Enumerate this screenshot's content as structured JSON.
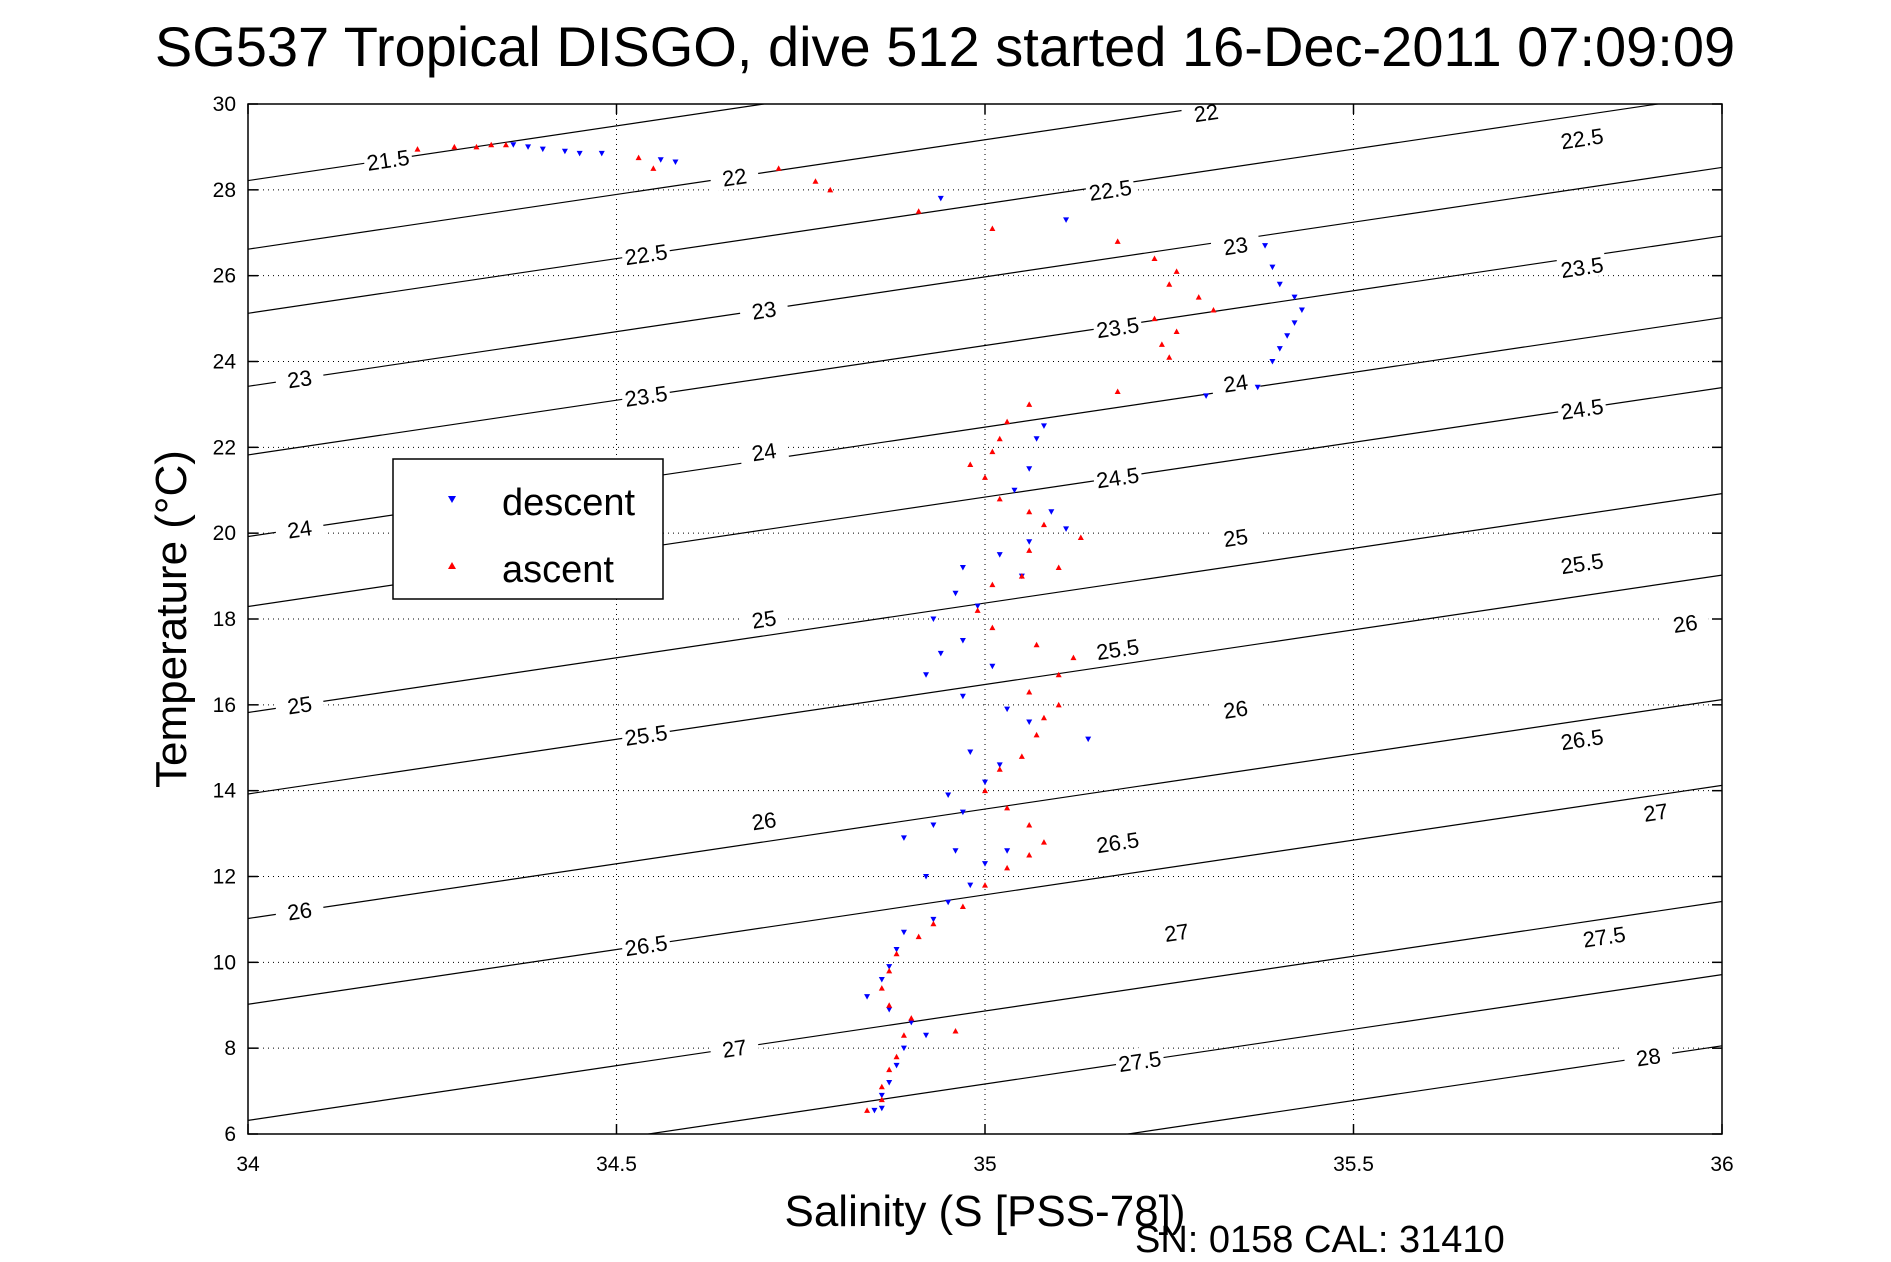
{
  "chart_data": {
    "type": "scatter",
    "title": "SG537 Tropical DISGO, dive 512 started 16-Dec-2011 07:09:09",
    "xlabel": "Salinity (S [PSS-78])",
    "ylabel": "Temperature (°C)",
    "xlim": [
      34,
      36
    ],
    "ylim": [
      6,
      30
    ],
    "x_ticks": [
      "34",
      "34.5",
      "35",
      "35.5",
      "36"
    ],
    "y_ticks": [
      "6",
      "8",
      "10",
      "12",
      "14",
      "16",
      "18",
      "20",
      "22",
      "24",
      "26",
      "28",
      "30"
    ],
    "grid": true,
    "legend_position": "upper-left",
    "footer": "SN: 0158  CAL: 31410",
    "colors": {
      "descent": "#0000ff",
      "ascent": "#ff0000",
      "contour": "#000000"
    },
    "density_contours": [
      {
        "label": "21.5",
        "x": 34.19,
        "y": 28.7
      },
      {
        "label": "22",
        "x": 34.66,
        "y": 28.3
      },
      {
        "label": "22",
        "x": 35.3,
        "y": 29.8
      },
      {
        "label": "22.5",
        "x": 34.54,
        "y": 26.5
      },
      {
        "label": "22.5",
        "x": 35.17,
        "y": 28.0
      },
      {
        "label": "22.5",
        "x": 35.81,
        "y": 29.2
      },
      {
        "label": "23",
        "x": 34.07,
        "y": 23.6
      },
      {
        "label": "23",
        "x": 34.7,
        "y": 25.2
      },
      {
        "label": "23",
        "x": 35.34,
        "y": 26.7
      },
      {
        "label": "23.5",
        "x": 34.54,
        "y": 23.2
      },
      {
        "label": "23.5",
        "x": 35.18,
        "y": 24.8
      },
      {
        "label": "23.5",
        "x": 35.81,
        "y": 26.2
      },
      {
        "label": "24",
        "x": 34.07,
        "y": 20.1
      },
      {
        "label": "24",
        "x": 34.7,
        "y": 21.9
      },
      {
        "label": "24",
        "x": 35.34,
        "y": 23.5
      },
      {
        "label": "24.5",
        "x": 35.18,
        "y": 21.3
      },
      {
        "label": "24.5",
        "x": 35.81,
        "y": 22.9
      },
      {
        "label": "25",
        "x": 34.07,
        "y": 16.0
      },
      {
        "label": "25",
        "x": 34.7,
        "y": 18.0
      },
      {
        "label": "25",
        "x": 35.34,
        "y": 19.9
      },
      {
        "label": "25.5",
        "x": 34.54,
        "y": 15.3
      },
      {
        "label": "25.5",
        "x": 35.18,
        "y": 17.3
      },
      {
        "label": "25.5",
        "x": 35.81,
        "y": 19.3
      },
      {
        "label": "26",
        "x": 34.07,
        "y": 11.2
      },
      {
        "label": "26",
        "x": 34.7,
        "y": 13.3
      },
      {
        "label": "26",
        "x": 35.34,
        "y": 15.9
      },
      {
        "label": "26",
        "x": 35.95,
        "y": 17.9
      },
      {
        "label": "26.5",
        "x": 34.54,
        "y": 10.4
      },
      {
        "label": "26.5",
        "x": 35.18,
        "y": 12.8
      },
      {
        "label": "26.5",
        "x": 35.81,
        "y": 15.2
      },
      {
        "label": "27",
        "x": 34.66,
        "y": 8.0
      },
      {
        "label": "27",
        "x": 35.26,
        "y": 10.7
      },
      {
        "label": "27",
        "x": 35.91,
        "y": 13.5
      },
      {
        "label": "27.5",
        "x": 35.21,
        "y": 7.7
      },
      {
        "label": "27.5",
        "x": 35.84,
        "y": 10.6
      },
      {
        "label": "28",
        "x": 35.9,
        "y": 7.8
      }
    ],
    "series": [
      {
        "name": "descent",
        "marker": "triangle-down",
        "color": "#0000ff",
        "points": [
          [
            34.36,
            29.05
          ],
          [
            34.38,
            29.0
          ],
          [
            34.4,
            28.95
          ],
          [
            34.43,
            28.9
          ],
          [
            34.45,
            28.85
          ],
          [
            34.48,
            28.85
          ],
          [
            34.56,
            28.7
          ],
          [
            34.58,
            28.65
          ],
          [
            34.94,
            27.8
          ],
          [
            35.11,
            27.3
          ],
          [
            35.38,
            26.7
          ],
          [
            35.39,
            26.2
          ],
          [
            35.4,
            25.8
          ],
          [
            35.42,
            25.5
          ],
          [
            35.43,
            25.2
          ],
          [
            35.42,
            24.9
          ],
          [
            35.41,
            24.6
          ],
          [
            35.4,
            24.3
          ],
          [
            35.39,
            24.0
          ],
          [
            35.37,
            23.4
          ],
          [
            35.3,
            23.2
          ],
          [
            35.08,
            22.5
          ],
          [
            35.07,
            22.2
          ],
          [
            35.06,
            21.5
          ],
          [
            35.04,
            21.0
          ],
          [
            35.09,
            20.5
          ],
          [
            35.11,
            20.1
          ],
          [
            35.06,
            19.8
          ],
          [
            35.02,
            19.5
          ],
          [
            34.97,
            19.2
          ],
          [
            35.05,
            19.0
          ],
          [
            34.96,
            18.6
          ],
          [
            34.99,
            18.3
          ],
          [
            34.93,
            18.0
          ],
          [
            34.97,
            17.5
          ],
          [
            34.94,
            17.2
          ],
          [
            35.01,
            16.9
          ],
          [
            34.92,
            16.7
          ],
          [
            34.97,
            16.2
          ],
          [
            35.03,
            15.9
          ],
          [
            35.06,
            15.6
          ],
          [
            35.14,
            15.2
          ],
          [
            34.98,
            14.9
          ],
          [
            35.02,
            14.6
          ],
          [
            35.0,
            14.2
          ],
          [
            34.95,
            13.9
          ],
          [
            34.97,
            13.5
          ],
          [
            34.93,
            13.2
          ],
          [
            34.89,
            12.9
          ],
          [
            34.96,
            12.6
          ],
          [
            35.03,
            12.6
          ],
          [
            35.0,
            12.3
          ],
          [
            34.92,
            12.0
          ],
          [
            34.98,
            11.8
          ],
          [
            34.95,
            11.4
          ],
          [
            34.93,
            11.0
          ],
          [
            34.89,
            10.7
          ],
          [
            34.88,
            10.3
          ],
          [
            34.87,
            9.9
          ],
          [
            34.86,
            9.6
          ],
          [
            34.84,
            9.2
          ],
          [
            34.87,
            8.9
          ],
          [
            34.9,
            8.6
          ],
          [
            34.92,
            8.3
          ],
          [
            34.89,
            8.0
          ],
          [
            34.88,
            7.6
          ],
          [
            34.87,
            7.2
          ],
          [
            34.86,
            6.9
          ],
          [
            34.86,
            6.6
          ],
          [
            34.85,
            6.55
          ]
        ]
      },
      {
        "name": "ascent",
        "marker": "triangle-up",
        "color": "#ff0000",
        "points": [
          [
            34.23,
            28.95
          ],
          [
            34.28,
            29.0
          ],
          [
            34.31,
            29.0
          ],
          [
            34.33,
            29.05
          ],
          [
            34.35,
            29.05
          ],
          [
            34.53,
            28.75
          ],
          [
            34.55,
            28.5
          ],
          [
            34.72,
            28.5
          ],
          [
            34.77,
            28.2
          ],
          [
            34.79,
            28.0
          ],
          [
            34.91,
            27.5
          ],
          [
            35.01,
            27.1
          ],
          [
            35.18,
            26.8
          ],
          [
            35.23,
            26.4
          ],
          [
            35.26,
            26.1
          ],
          [
            35.25,
            25.8
          ],
          [
            35.29,
            25.5
          ],
          [
            35.31,
            25.2
          ],
          [
            35.23,
            25.0
          ],
          [
            35.26,
            24.7
          ],
          [
            35.24,
            24.4
          ],
          [
            35.25,
            24.1
          ],
          [
            35.18,
            23.3
          ],
          [
            35.06,
            23.0
          ],
          [
            35.03,
            22.6
          ],
          [
            35.02,
            22.2
          ],
          [
            35.01,
            21.9
          ],
          [
            34.98,
            21.6
          ],
          [
            35.0,
            21.3
          ],
          [
            35.02,
            20.8
          ],
          [
            35.06,
            20.5
          ],
          [
            35.08,
            20.2
          ],
          [
            35.13,
            19.9
          ],
          [
            35.06,
            19.6
          ],
          [
            35.1,
            19.2
          ],
          [
            35.05,
            19.0
          ],
          [
            35.01,
            18.8
          ],
          [
            34.99,
            18.2
          ],
          [
            35.01,
            17.8
          ],
          [
            35.07,
            17.4
          ],
          [
            35.12,
            17.1
          ],
          [
            35.1,
            16.7
          ],
          [
            35.06,
            16.3
          ],
          [
            35.1,
            16.0
          ],
          [
            35.08,
            15.7
          ],
          [
            35.07,
            15.3
          ],
          [
            35.05,
            14.8
          ],
          [
            35.02,
            14.5
          ],
          [
            35.0,
            14.0
          ],
          [
            35.03,
            13.6
          ],
          [
            35.06,
            13.2
          ],
          [
            35.08,
            12.8
          ],
          [
            35.06,
            12.5
          ],
          [
            35.03,
            12.2
          ],
          [
            35.0,
            11.8
          ],
          [
            34.97,
            11.3
          ],
          [
            34.93,
            10.9
          ],
          [
            34.91,
            10.6
          ],
          [
            34.88,
            10.2
          ],
          [
            34.87,
            9.8
          ],
          [
            34.86,
            9.4
          ],
          [
            34.87,
            9.0
          ],
          [
            34.9,
            8.7
          ],
          [
            34.96,
            8.4
          ],
          [
            34.89,
            8.3
          ],
          [
            34.88,
            7.8
          ],
          [
            34.87,
            7.5
          ],
          [
            34.86,
            7.1
          ],
          [
            34.86,
            6.8
          ],
          [
            34.84,
            6.55
          ]
        ]
      }
    ]
  },
  "legend": {
    "descent_label": "descent",
    "ascent_label": "ascent"
  },
  "footer_text": "SN: 0158  CAL: 31410"
}
